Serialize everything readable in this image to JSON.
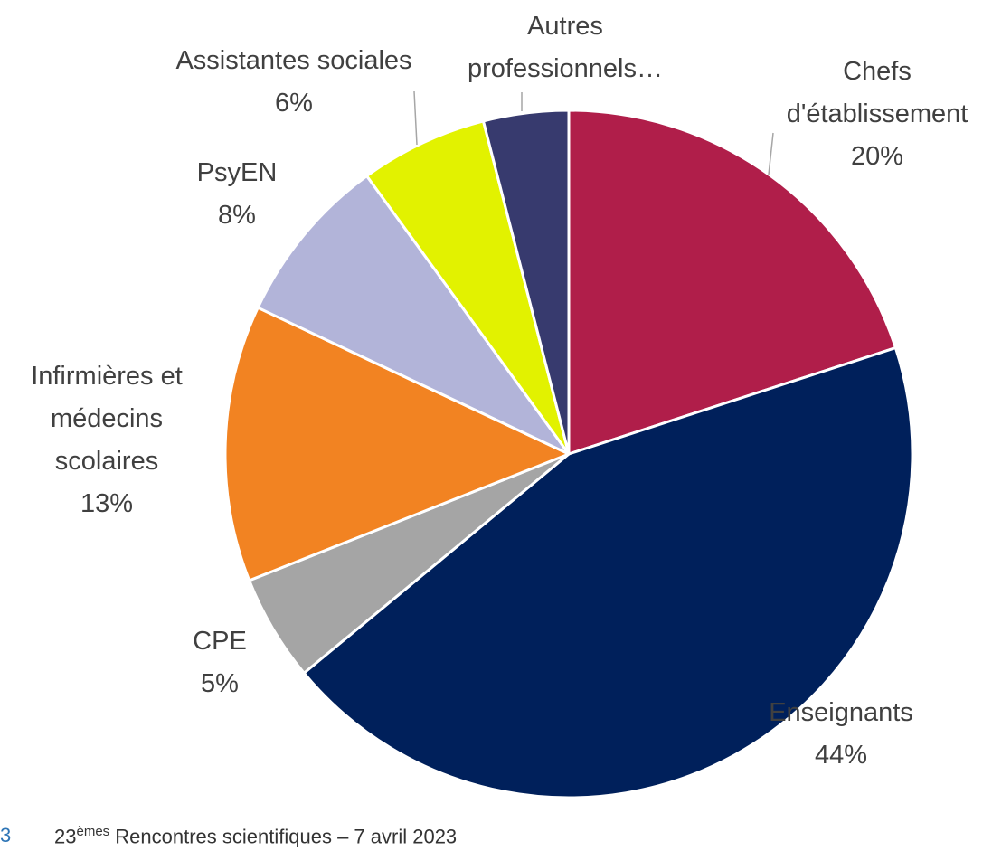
{
  "chart_data": {
    "type": "pie",
    "title": "",
    "start_angle_deg": 0,
    "direction": "clockwise",
    "slices": [
      {
        "label": "Chefs d'établissement",
        "label_lines": [
          "Chefs",
          "d'établissement"
        ],
        "value": 20,
        "value_label": "20%",
        "color": "#b01e4a"
      },
      {
        "label": "Enseignants",
        "label_lines": [
          "Enseignants"
        ],
        "value": 44,
        "value_label": "44%",
        "color": "#00205b"
      },
      {
        "label": "CPE",
        "label_lines": [
          "CPE"
        ],
        "value": 5,
        "value_label": "5%",
        "color": "#a5a5a5"
      },
      {
        "label": "Infirmières et médecins scolaires",
        "label_lines": [
          "Infirmières et",
          "médecins",
          "scolaires"
        ],
        "value": 13,
        "value_label": "13%",
        "color": "#f28322"
      },
      {
        "label": "PsyEN",
        "label_lines": [
          "PsyEN"
        ],
        "value": 8,
        "value_label": "8%",
        "color": "#b2b4d9"
      },
      {
        "label": "Assistantes sociales",
        "label_lines": [
          "Assistantes sociales"
        ],
        "value": 6,
        "value_label": "6%",
        "color": "#e2f200"
      },
      {
        "label": "Autres professionnels…",
        "label_lines": [
          "Autres",
          "professionnels…"
        ],
        "value": 4,
        "value_label": "",
        "color": "#373a6e"
      }
    ]
  },
  "footer": {
    "page_number": "3",
    "event_ordinal": "23",
    "event_suffix": "èmes",
    "event_text": " Rencontres scientifiques – 7 avril 2023"
  }
}
